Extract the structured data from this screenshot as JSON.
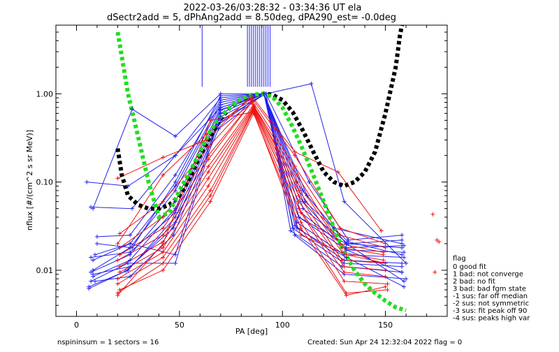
{
  "chart_data": {
    "type": "line",
    "title": "2022-03-26/03:28:32 - 03:34:36 UT ela",
    "subtitle": "dSectr2add = 5, dPhAng2add = 8.50deg, dPA290_est=  -0.0deg",
    "xlabel": "PA [deg]",
    "ylabel": "nflux [#/(cm^2 s sr MeV)]",
    "xlim": [
      -10,
      180
    ],
    "ylim": [
      0.003,
      6.0
    ],
    "yscale": "log",
    "xticks": [
      "0",
      "50",
      "100",
      "150"
    ],
    "yticks": [
      "0.01",
      "0.10",
      "1.00"
    ],
    "colors": {
      "blue": "#2222ee",
      "red": "#ee1111",
      "green": "#22dd22",
      "black": "#000000"
    },
    "blue_curves": [
      [
        [
          5,
          0.1
        ],
        [
          25,
          0.09
        ],
        [
          48,
          0.2
        ],
        [
          70,
          0.7
        ],
        [
          91,
          1.0
        ],
        [
          110,
          0.08
        ],
        [
          125,
          0.03
        ],
        [
          158,
          0.02
        ]
      ],
      [
        [
          8,
          0.05
        ],
        [
          27,
          0.67
        ],
        [
          48,
          0.33
        ],
        [
          70,
          1.0
        ],
        [
          92,
          1.0
        ],
        [
          114,
          1.3
        ],
        [
          130,
          0.06
        ],
        [
          160,
          0.012
        ]
      ],
      [
        [
          7,
          0.052
        ],
        [
          27,
          0.05
        ],
        [
          48,
          0.2
        ],
        [
          70,
          0.9
        ],
        [
          91,
          1.0
        ],
        [
          112,
          0.07
        ],
        [
          131,
          0.02
        ],
        [
          158,
          0.018
        ]
      ],
      [
        [
          10,
          0.024
        ],
        [
          26,
          0.025
        ],
        [
          48,
          0.12
        ],
        [
          70,
          0.85
        ],
        [
          91,
          1.0
        ],
        [
          111,
          0.06
        ],
        [
          132,
          0.021
        ],
        [
          158,
          0.015
        ]
      ],
      [
        [
          9,
          0.015
        ],
        [
          26,
          0.02
        ],
        [
          48,
          0.09
        ],
        [
          70,
          0.8
        ],
        [
          91,
          1.0
        ],
        [
          110,
          0.05
        ],
        [
          132,
          0.02
        ],
        [
          158,
          0.022
        ]
      ],
      [
        [
          8,
          0.01
        ],
        [
          26,
          0.018
        ],
        [
          48,
          0.08
        ],
        [
          70,
          0.75
        ],
        [
          91,
          1.0
        ],
        [
          109,
          0.045
        ],
        [
          131,
          0.018
        ],
        [
          159,
          0.019
        ]
      ],
      [
        [
          7,
          0.0095
        ],
        [
          26,
          0.015
        ],
        [
          48,
          0.06
        ],
        [
          70,
          0.7
        ],
        [
          91,
          1.0
        ],
        [
          108,
          0.04
        ],
        [
          131,
          0.017
        ],
        [
          159,
          0.016
        ]
      ],
      [
        [
          8,
          0.0085
        ],
        [
          26,
          0.013
        ],
        [
          48,
          0.05
        ],
        [
          70,
          0.66
        ],
        [
          91,
          1.0
        ],
        [
          107,
          0.035
        ],
        [
          130,
          0.015
        ],
        [
          159,
          0.014
        ]
      ],
      [
        [
          7,
          0.0075
        ],
        [
          25,
          0.012
        ],
        [
          48,
          0.012
        ],
        [
          70,
          0.6
        ],
        [
          91,
          1.0
        ],
        [
          106,
          0.032
        ],
        [
          130,
          0.013
        ],
        [
          158,
          0.012
        ]
      ],
      [
        [
          6,
          0.0065
        ],
        [
          25,
          0.01
        ],
        [
          48,
          0.04
        ],
        [
          70,
          0.55
        ],
        [
          92,
          1.0
        ],
        [
          105,
          0.03
        ],
        [
          130,
          0.012
        ],
        [
          158,
          0.011
        ]
      ],
      [
        [
          6,
          0.0062
        ],
        [
          24,
          0.0098
        ],
        [
          48,
          0.035
        ],
        [
          70,
          0.5
        ],
        [
          92,
          1.0
        ],
        [
          104,
          0.028
        ],
        [
          129,
          0.011
        ],
        [
          158,
          0.0095
        ]
      ],
      [
        [
          7,
          0.014
        ],
        [
          26,
          0.016
        ],
        [
          48,
          0.045
        ],
        [
          70,
          0.6
        ],
        [
          91,
          1.0
        ],
        [
          108,
          0.04
        ],
        [
          131,
          0.02
        ],
        [
          159,
          0.0075
        ]
      ],
      [
        [
          8,
          0.009
        ],
        [
          26,
          0.011
        ],
        [
          47,
          0.03
        ],
        [
          69,
          0.45
        ],
        [
          91,
          1.0
        ],
        [
          107,
          0.03
        ],
        [
          131,
          0.014
        ],
        [
          159,
          0.0065
        ]
      ],
      [
        [
          9,
          0.0075
        ],
        [
          26,
          0.0085
        ],
        [
          47,
          0.025
        ],
        [
          69,
          0.4
        ],
        [
          91,
          1.0
        ],
        [
          106,
          0.025
        ],
        [
          130,
          0.009
        ],
        [
          160,
          0.008
        ]
      ],
      [
        [
          10,
          0.02
        ],
        [
          27,
          0.018
        ],
        [
          48,
          0.1
        ],
        [
          70,
          0.95
        ],
        [
          92,
          1.0
        ],
        [
          113,
          0.1
        ],
        [
          132,
          0.022
        ],
        [
          158,
          0.025
        ]
      ],
      [
        [
          8,
          0.013
        ],
        [
          26,
          0.02
        ],
        [
          48,
          0.015
        ],
        [
          70,
          0.65
        ],
        [
          91,
          1.0
        ],
        [
          110,
          0.06
        ],
        [
          131,
          0.017
        ],
        [
          158,
          0.0095
        ]
      ]
    ],
    "red_curves": [
      [
        [
          20,
          0.11
        ],
        [
          42,
          0.19
        ],
        [
          63,
          0.3
        ],
        [
          85,
          0.95
        ],
        [
          106,
          0.22
        ],
        [
          127,
          0.13
        ],
        [
          148,
          0.028
        ]
      ],
      [
        [
          20,
          0.02
        ],
        [
          42,
          0.12
        ],
        [
          63,
          0.35
        ],
        [
          85,
          0.9
        ],
        [
          106,
          0.2
        ],
        [
          128,
          0.03
        ],
        [
          150,
          0.02
        ]
      ],
      [
        [
          21,
          0.026
        ],
        [
          42,
          0.06
        ],
        [
          64,
          0.25
        ],
        [
          85,
          0.85
        ],
        [
          106,
          0.15
        ],
        [
          128,
          0.025
        ],
        [
          150,
          0.018
        ]
      ],
      [
        [
          21,
          0.018
        ],
        [
          42,
          0.04
        ],
        [
          64,
          0.2
        ],
        [
          85,
          0.8
        ],
        [
          107,
          0.12
        ],
        [
          128,
          0.02
        ],
        [
          149,
          0.016
        ]
      ],
      [
        [
          21,
          0.015
        ],
        [
          42,
          0.03
        ],
        [
          64,
          0.18
        ],
        [
          85,
          0.8
        ],
        [
          107,
          0.1
        ],
        [
          129,
          0.018
        ],
        [
          149,
          0.015
        ]
      ],
      [
        [
          20,
          0.013
        ],
        [
          42,
          0.025
        ],
        [
          64,
          0.15
        ],
        [
          86,
          0.75
        ],
        [
          108,
          0.08
        ],
        [
          129,
          0.016
        ],
        [
          149,
          0.013
        ]
      ],
      [
        [
          21,
          0.011
        ],
        [
          42,
          0.021
        ],
        [
          64,
          0.13
        ],
        [
          86,
          0.72
        ],
        [
          108,
          0.07
        ],
        [
          129,
          0.013
        ],
        [
          150,
          0.012
        ]
      ],
      [
        [
          21,
          0.0095
        ],
        [
          42,
          0.018
        ],
        [
          64,
          0.11
        ],
        [
          86,
          0.7
        ],
        [
          108,
          0.06
        ],
        [
          130,
          0.011
        ],
        [
          150,
          0.01
        ]
      ],
      [
        [
          20,
          0.008
        ],
        [
          42,
          0.016
        ],
        [
          64,
          0.09
        ],
        [
          86,
          0.68
        ],
        [
          108,
          0.05
        ],
        [
          130,
          0.0095
        ],
        [
          150,
          0.0085
        ]
      ],
      [
        [
          20,
          0.007
        ],
        [
          42,
          0.014
        ],
        [
          65,
          0.08
        ],
        [
          86,
          0.66
        ],
        [
          109,
          0.045
        ],
        [
          130,
          0.0075
        ],
        [
          151,
          0.007
        ]
      ],
      [
        [
          20,
          0.0055
        ],
        [
          42,
          0.012
        ],
        [
          65,
          0.07
        ],
        [
          86,
          0.64
        ],
        [
          109,
          0.035
        ],
        [
          131,
          0.0055
        ],
        [
          151,
          0.006
        ]
      ],
      [
        [
          21,
          0.006
        ],
        [
          42,
          0.01
        ],
        [
          65,
          0.06
        ],
        [
          86,
          0.6
        ],
        [
          109,
          0.03
        ],
        [
          131,
          0.0052
        ],
        [
          150,
          0.0065
        ]
      ],
      [
        [
          20,
          0.0052
        ],
        [
          42,
          0.02
        ],
        [
          65,
          0.5
        ],
        [
          86,
          0.62
        ],
        [
          109,
          0.025
        ],
        [
          131,
          0.015
        ],
        [
          150,
          0.012
        ]
      ]
    ],
    "red_extra_points": [
      [
        173,
        0.043
      ],
      [
        175,
        0.022
      ],
      [
        176,
        0.021
      ],
      [
        174,
        0.0095
      ]
    ],
    "green_curve": [
      [
        20,
        5.0
      ],
      [
        25,
        1.0
      ],
      [
        30,
        0.32
      ],
      [
        35,
        0.1
      ],
      [
        40,
        0.04
      ],
      [
        45,
        0.045
      ],
      [
        50,
        0.08
      ],
      [
        55,
        0.13
      ],
      [
        60,
        0.22
      ],
      [
        65,
        0.38
      ],
      [
        70,
        0.55
      ],
      [
        75,
        0.72
      ],
      [
        80,
        0.88
      ],
      [
        85,
        0.97
      ],
      [
        90,
        1.0
      ],
      [
        95,
        0.93
      ],
      [
        100,
        0.7
      ],
      [
        105,
        0.42
      ],
      [
        110,
        0.23
      ],
      [
        115,
        0.12
      ],
      [
        120,
        0.06
      ],
      [
        125,
        0.03
      ],
      [
        130,
        0.016
      ],
      [
        135,
        0.01
      ],
      [
        140,
        0.007
      ],
      [
        145,
        0.0055
      ],
      [
        150,
        0.0045
      ],
      [
        155,
        0.0038
      ],
      [
        160,
        0.0035
      ]
    ],
    "black_curve": [
      [
        20,
        0.24
      ],
      [
        22,
        0.12
      ],
      [
        25,
        0.07
      ],
      [
        30,
        0.055
      ],
      [
        35,
        0.05
      ],
      [
        40,
        0.05
      ],
      [
        45,
        0.055
      ],
      [
        50,
        0.07
      ],
      [
        55,
        0.11
      ],
      [
        60,
        0.2
      ],
      [
        65,
        0.33
      ],
      [
        70,
        0.52
      ],
      [
        75,
        0.72
      ],
      [
        80,
        0.86
      ],
      [
        85,
        0.96
      ],
      [
        90,
        1.0
      ],
      [
        95,
        0.98
      ],
      [
        100,
        0.85
      ],
      [
        105,
        0.62
      ],
      [
        110,
        0.38
      ],
      [
        115,
        0.22
      ],
      [
        120,
        0.13
      ],
      [
        125,
        0.1
      ],
      [
        130,
        0.09
      ],
      [
        135,
        0.1
      ],
      [
        140,
        0.13
      ],
      [
        145,
        0.22
      ],
      [
        150,
        0.6
      ],
      [
        155,
        2.0
      ],
      [
        157,
        4.5
      ],
      [
        158,
        6.0
      ]
    ],
    "blue_vlines_top": [
      [
        61,
        1.2
      ],
      [
        83,
        1.2
      ],
      [
        84,
        1.2
      ],
      [
        85,
        1.2
      ],
      [
        86,
        1.2
      ],
      [
        87,
        1.2
      ],
      [
        88,
        1.2
      ],
      [
        89,
        1.2
      ],
      [
        90,
        1.2
      ],
      [
        91,
        1.2
      ],
      [
        92,
        1.2
      ],
      [
        93,
        1.2
      ],
      [
        94,
        1.2
      ]
    ],
    "legend": {
      "title": "flag",
      "placement": "right",
      "entries": [
        " 0 good fit",
        " 1 bad: not converge",
        " 2 bad: no fit",
        " 3 bad: bad fgm state",
        "-1 sus: far off median",
        "-2 sus: not symmetric",
        "-3 sus: fit peak off 90",
        "-4 sus: peaks high var"
      ]
    },
    "footer_left": "nspininsum =  1  sectors = 16",
    "footer_right": "Created: Sun Apr 24 12:32:04 2022   flag = 0"
  }
}
